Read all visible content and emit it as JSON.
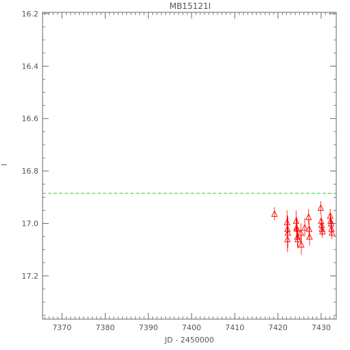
{
  "chart_data": {
    "type": "scatter",
    "title": "MB15121I",
    "xlabel": "JD - 2450000",
    "ylabel": "I",
    "xlim": [
      7365.5,
      7433.5
    ],
    "ylim": [
      17.365,
      16.195
    ],
    "y_inverted": true,
    "xticks": [
      7370,
      7380,
      7390,
      7400,
      7410,
      7420,
      7430
    ],
    "xtick_labels": [
      "7370",
      "7380",
      "7390",
      "7400",
      "7410",
      "7420",
      "7430"
    ],
    "yticks": [
      16.2,
      16.4,
      16.6,
      16.8,
      17.0,
      17.2
    ],
    "ytick_labels": [
      "16.2",
      "16.4",
      "16.6",
      "16.8",
      "17.0",
      "17.2"
    ],
    "grid": false,
    "reference_line": {
      "y": 16.885,
      "color": "#33cc33",
      "style": "dashed"
    },
    "series": [
      {
        "marker": "open-triangle",
        "color": "#ff0000",
        "points": [
          {
            "x": 7419.2,
            "y": 16.963,
            "err": 0.025
          },
          {
            "x": 7422.1,
            "y": 16.995,
            "err": 0.045
          },
          {
            "x": 7422.2,
            "y": 17.02,
            "err": 0.05
          },
          {
            "x": 7422.2,
            "y": 17.06,
            "err": 0.05
          },
          {
            "x": 7422.3,
            "y": 17.035,
            "err": 0.06
          },
          {
            "x": 7424.2,
            "y": 16.99,
            "err": 0.04
          },
          {
            "x": 7424.3,
            "y": 17.015,
            "err": 0.04
          },
          {
            "x": 7424.4,
            "y": 17.02,
            "err": 0.04
          },
          {
            "x": 7424.5,
            "y": 17.05,
            "err": 0.04
          },
          {
            "x": 7424.6,
            "y": 17.06,
            "err": 0.035
          },
          {
            "x": 7425.3,
            "y": 17.035,
            "err": 0.035
          },
          {
            "x": 7425.4,
            "y": 17.08,
            "err": 0.04
          },
          {
            "x": 7426.2,
            "y": 17.015,
            "err": 0.035
          },
          {
            "x": 7427.1,
            "y": 16.975,
            "err": 0.03
          },
          {
            "x": 7427.2,
            "y": 17.02,
            "err": 0.035
          },
          {
            "x": 7427.3,
            "y": 17.05,
            "err": 0.035
          },
          {
            "x": 7429.9,
            "y": 16.94,
            "err": 0.025
          },
          {
            "x": 7430.0,
            "y": 16.99,
            "err": 0.025
          },
          {
            "x": 7430.1,
            "y": 17.005,
            "err": 0.025
          },
          {
            "x": 7430.2,
            "y": 17.02,
            "err": 0.025
          },
          {
            "x": 7430.3,
            "y": 17.03,
            "err": 0.025
          },
          {
            "x": 7432.1,
            "y": 16.97,
            "err": 0.025
          },
          {
            "x": 7432.2,
            "y": 16.99,
            "err": 0.025
          },
          {
            "x": 7432.3,
            "y": 17.0,
            "err": 0.025
          },
          {
            "x": 7432.4,
            "y": 17.02,
            "err": 0.025
          },
          {
            "x": 7432.5,
            "y": 17.035,
            "err": 0.025
          }
        ]
      }
    ]
  }
}
